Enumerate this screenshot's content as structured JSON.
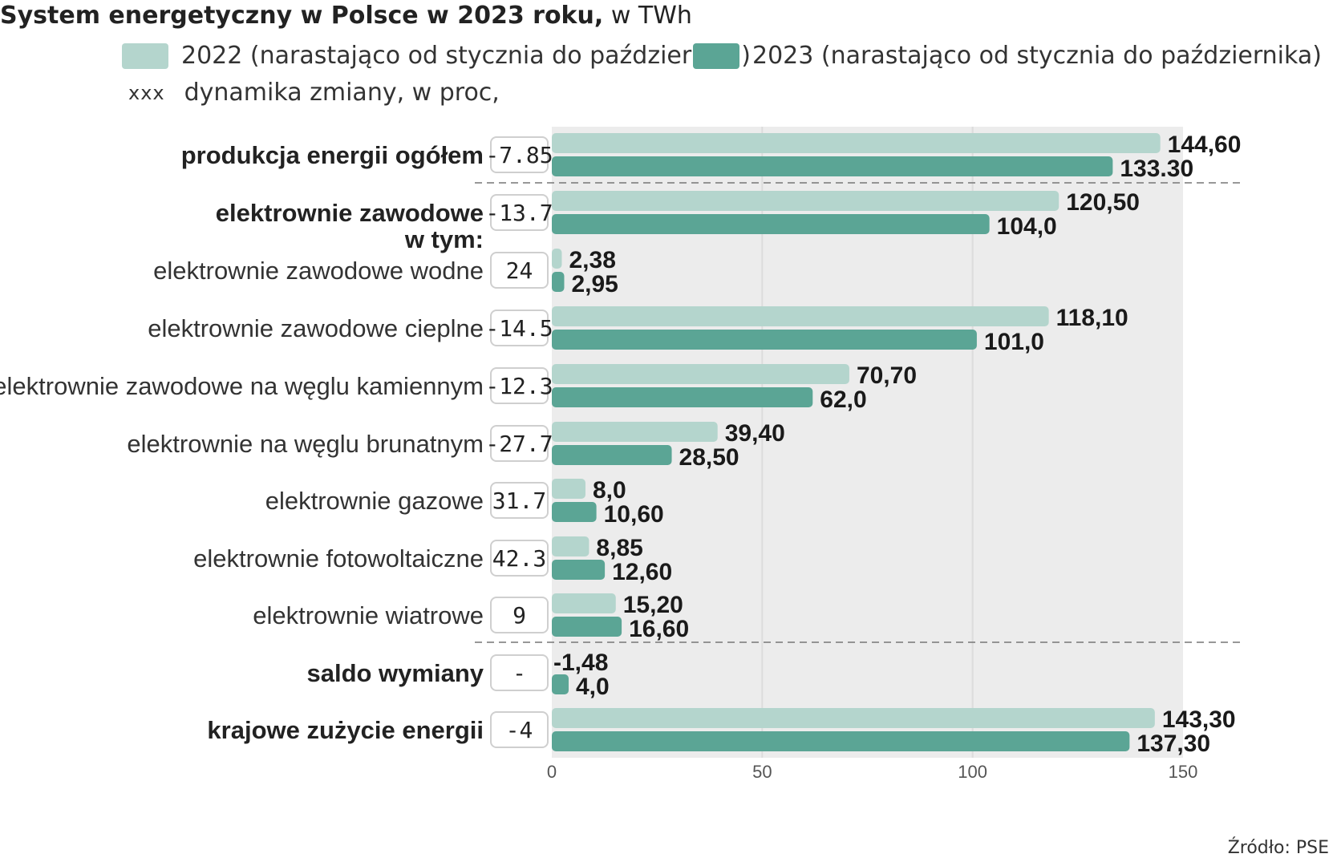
{
  "chart_data": {
    "type": "bar",
    "orientation": "horizontal",
    "title": "System energetyczny w Polsce w 2023 roku,",
    "title_unit": "w TWh",
    "legend": {
      "series_2022": "2022 (narastająco od stycznia do października)",
      "series_2023": "2023 (narastająco od stycznia do października)",
      "dynamics_marker": "xxx",
      "dynamics_label": "dynamika zmiany, w proc,"
    },
    "colors": {
      "s2022": "#b4d5cd",
      "s2023": "#5ba595",
      "plot_bg": "#ececec"
    },
    "xlim": [
      0,
      150
    ],
    "xticks": [
      "0",
      "50",
      "100",
      "150"
    ],
    "sub_header": "w tym:",
    "categories": [
      {
        "label": "produkcja energii ogółem",
        "bold": true,
        "dynamics": "-7.85",
        "v2022": 144.6,
        "v2023": 133.3,
        "l2022": "144,60",
        "l2023": "133.30"
      },
      {
        "label": "elektrownie zawodowe",
        "bold": true,
        "dynamics": "-13.7",
        "v2022": 120.5,
        "v2023": 104.0,
        "l2022": "120,50",
        "l2023": "104,0"
      },
      {
        "label": "elektrownie zawodowe wodne",
        "bold": false,
        "dynamics": "24",
        "v2022": 2.38,
        "v2023": 2.95,
        "l2022": "2,38",
        "l2023": "2,95"
      },
      {
        "label": "elektrownie zawodowe cieplne",
        "bold": false,
        "dynamics": "-14.5",
        "v2022": 118.1,
        "v2023": 101.0,
        "l2022": "118,10",
        "l2023": "101,0"
      },
      {
        "label": "elektrownie zawodowe na węglu kamiennym",
        "bold": false,
        "dynamics": "-12.3",
        "v2022": 70.7,
        "v2023": 62.0,
        "l2022": "70,70",
        "l2023": "62,0"
      },
      {
        "label": "elektrownie na węglu brunatnym",
        "bold": false,
        "dynamics": "-27.7",
        "v2022": 39.4,
        "v2023": 28.5,
        "l2022": "39,40",
        "l2023": "28,50"
      },
      {
        "label": "elektrownie gazowe",
        "bold": false,
        "dynamics": "31.7",
        "v2022": 8.0,
        "v2023": 10.6,
        "l2022": "8,0",
        "l2023": "10,60"
      },
      {
        "label": "elektrownie fotowoltaiczne",
        "bold": false,
        "dynamics": "42.3",
        "v2022": 8.85,
        "v2023": 12.6,
        "l2022": "8,85",
        "l2023": "12,60"
      },
      {
        "label": "elektrownie wiatrowe",
        "bold": false,
        "dynamics": "9",
        "v2022": 15.2,
        "v2023": 16.6,
        "l2022": "15,20",
        "l2023": "16,60"
      },
      {
        "label": "saldo wymiany",
        "bold": true,
        "dynamics": "-",
        "v2022": -1.48,
        "v2023": 4.0,
        "l2022": "-1,48",
        "l2023": "4,0"
      },
      {
        "label": "krajowe zużycie energii",
        "bold": true,
        "dynamics": "-4",
        "v2022": 143.3,
        "v2023": 137.3,
        "l2022": "143,30",
        "l2023": "137,30"
      }
    ],
    "source": "Źródło: PSE"
  }
}
